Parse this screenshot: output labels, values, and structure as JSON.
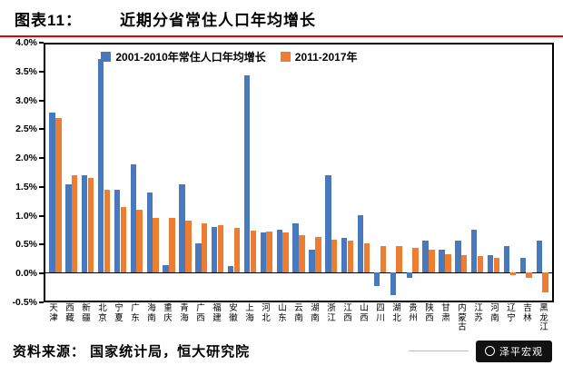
{
  "title": {
    "prefix": "图表11：",
    "text": "近期分省常住人口年均增长"
  },
  "chart_data": {
    "type": "bar",
    "title": "近期分省常住人口年均增长",
    "xlabel": "",
    "ylabel": "",
    "ylim": [
      -0.5,
      4.0
    ],
    "yticks": [
      "4.0%",
      "3.5%",
      "3.0%",
      "2.5%",
      "2.0%",
      "1.5%",
      "1.0%",
      "0.5%",
      "0.0%",
      "-0.5%"
    ],
    "grid": false,
    "legend_position": "top-inside",
    "categories": [
      "天津",
      "西藏",
      "新疆",
      "北京",
      "宁夏",
      "广东",
      "海南",
      "重庆",
      "青海",
      "广西",
      "福建",
      "安徽",
      "上海",
      "河北",
      "山东",
      "云南",
      "湖南",
      "浙江",
      "江西",
      "山西",
      "四川",
      "湖北",
      "贵州",
      "陕西",
      "甘肃",
      "内蒙古",
      "江苏",
      "河南",
      "辽宁",
      "吉林",
      "黑龙江"
    ],
    "series": [
      {
        "name": "2001-2010年常住人口年均增长",
        "color": "#4879BD",
        "values": [
          2.8,
          1.55,
          1.7,
          3.75,
          1.45,
          1.9,
          1.4,
          0.12,
          1.55,
          0.5,
          0.8,
          0.1,
          3.45,
          0.7,
          0.75,
          0.85,
          0.4,
          1.7,
          0.6,
          1.0,
          -0.25,
          -0.4,
          -0.1,
          0.55,
          0.4,
          0.55,
          0.75,
          0.3,
          0.45,
          0.25,
          0.55
        ]
      },
      {
        "name": "2011-2017年",
        "color": "#ED7D31",
        "values": [
          2.7,
          1.7,
          1.65,
          1.45,
          1.15,
          1.1,
          0.95,
          0.95,
          0.9,
          0.85,
          0.82,
          0.78,
          0.73,
          0.72,
          0.7,
          0.65,
          0.62,
          0.57,
          0.55,
          0.5,
          0.46,
          0.45,
          0.42,
          0.4,
          0.32,
          0.3,
          0.28,
          0.25,
          -0.05,
          -0.1,
          -0.35
        ]
      }
    ]
  },
  "footer": {
    "source": "资料来源：  国家统计局，恒大研究院",
    "brand": "泽平宏观"
  }
}
